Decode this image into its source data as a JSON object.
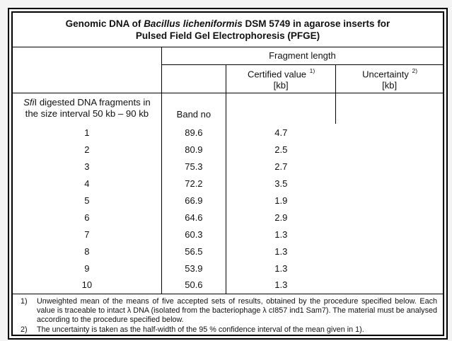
{
  "document": {
    "title": {
      "prefix": "Genomic DNA of ",
      "species": "Bacillus licheniformis",
      "suffix": " DSM 5749 in agarose inserts for",
      "line2": "Pulsed Field Gel Electrophoresis (PFGE)"
    },
    "columns": {
      "fragment_length": "Fragment length",
      "certified_value": "Certified value",
      "certified_sup": "1)",
      "certified_unit": "[kb]",
      "uncertainty": "Uncertainty",
      "uncertainty_sup": "2)",
      "uncertainty_unit": "[kb]",
      "band_no": "Band no"
    },
    "row_label": {
      "enzyme_italic": "Sfi",
      "line1_rest": "I digested DNA fragments in",
      "line2": "the size interval 50 kb – 90 kb"
    },
    "table": {
      "rows": [
        {
          "band": "1",
          "certified": "89.6",
          "uncertainty": "4.7"
        },
        {
          "band": "2",
          "certified": "80.9",
          "uncertainty": "2.5"
        },
        {
          "band": "3",
          "certified": "75.3",
          "uncertainty": "2.7"
        },
        {
          "band": "4",
          "certified": "72.2",
          "uncertainty": "3.5"
        },
        {
          "band": "5",
          "certified": "66.9",
          "uncertainty": "1.9"
        },
        {
          "band": "6",
          "certified": "64.6",
          "uncertainty": "2.9"
        },
        {
          "band": "7",
          "certified": "60.3",
          "uncertainty": "1.3"
        },
        {
          "band": "8",
          "certified": "56.5",
          "uncertainty": "1.3"
        },
        {
          "band": "9",
          "certified": "53.9",
          "uncertainty": "1.3"
        },
        {
          "band": "10",
          "certified": "50.6",
          "uncertainty": "1.3"
        }
      ]
    },
    "footnotes": [
      {
        "marker": "1)",
        "text": "Unweighted mean of the means of five accepted sets of results, obtained by the procedure specified below. Each value is traceable to intact λ DNA (isolated from the bacteriophage λ cI857 ind1 Sam7). The material must be analysed according to the procedure specified below."
      },
      {
        "marker": "2)",
        "text": "The uncertainty is taken as the half-width of the 95 % confidence interval of the mean given in 1)."
      }
    ],
    "colors": {
      "border": "#000000",
      "text": "#111111",
      "page_background": "#f4f4f4",
      "table_background": "#ffffff"
    }
  }
}
